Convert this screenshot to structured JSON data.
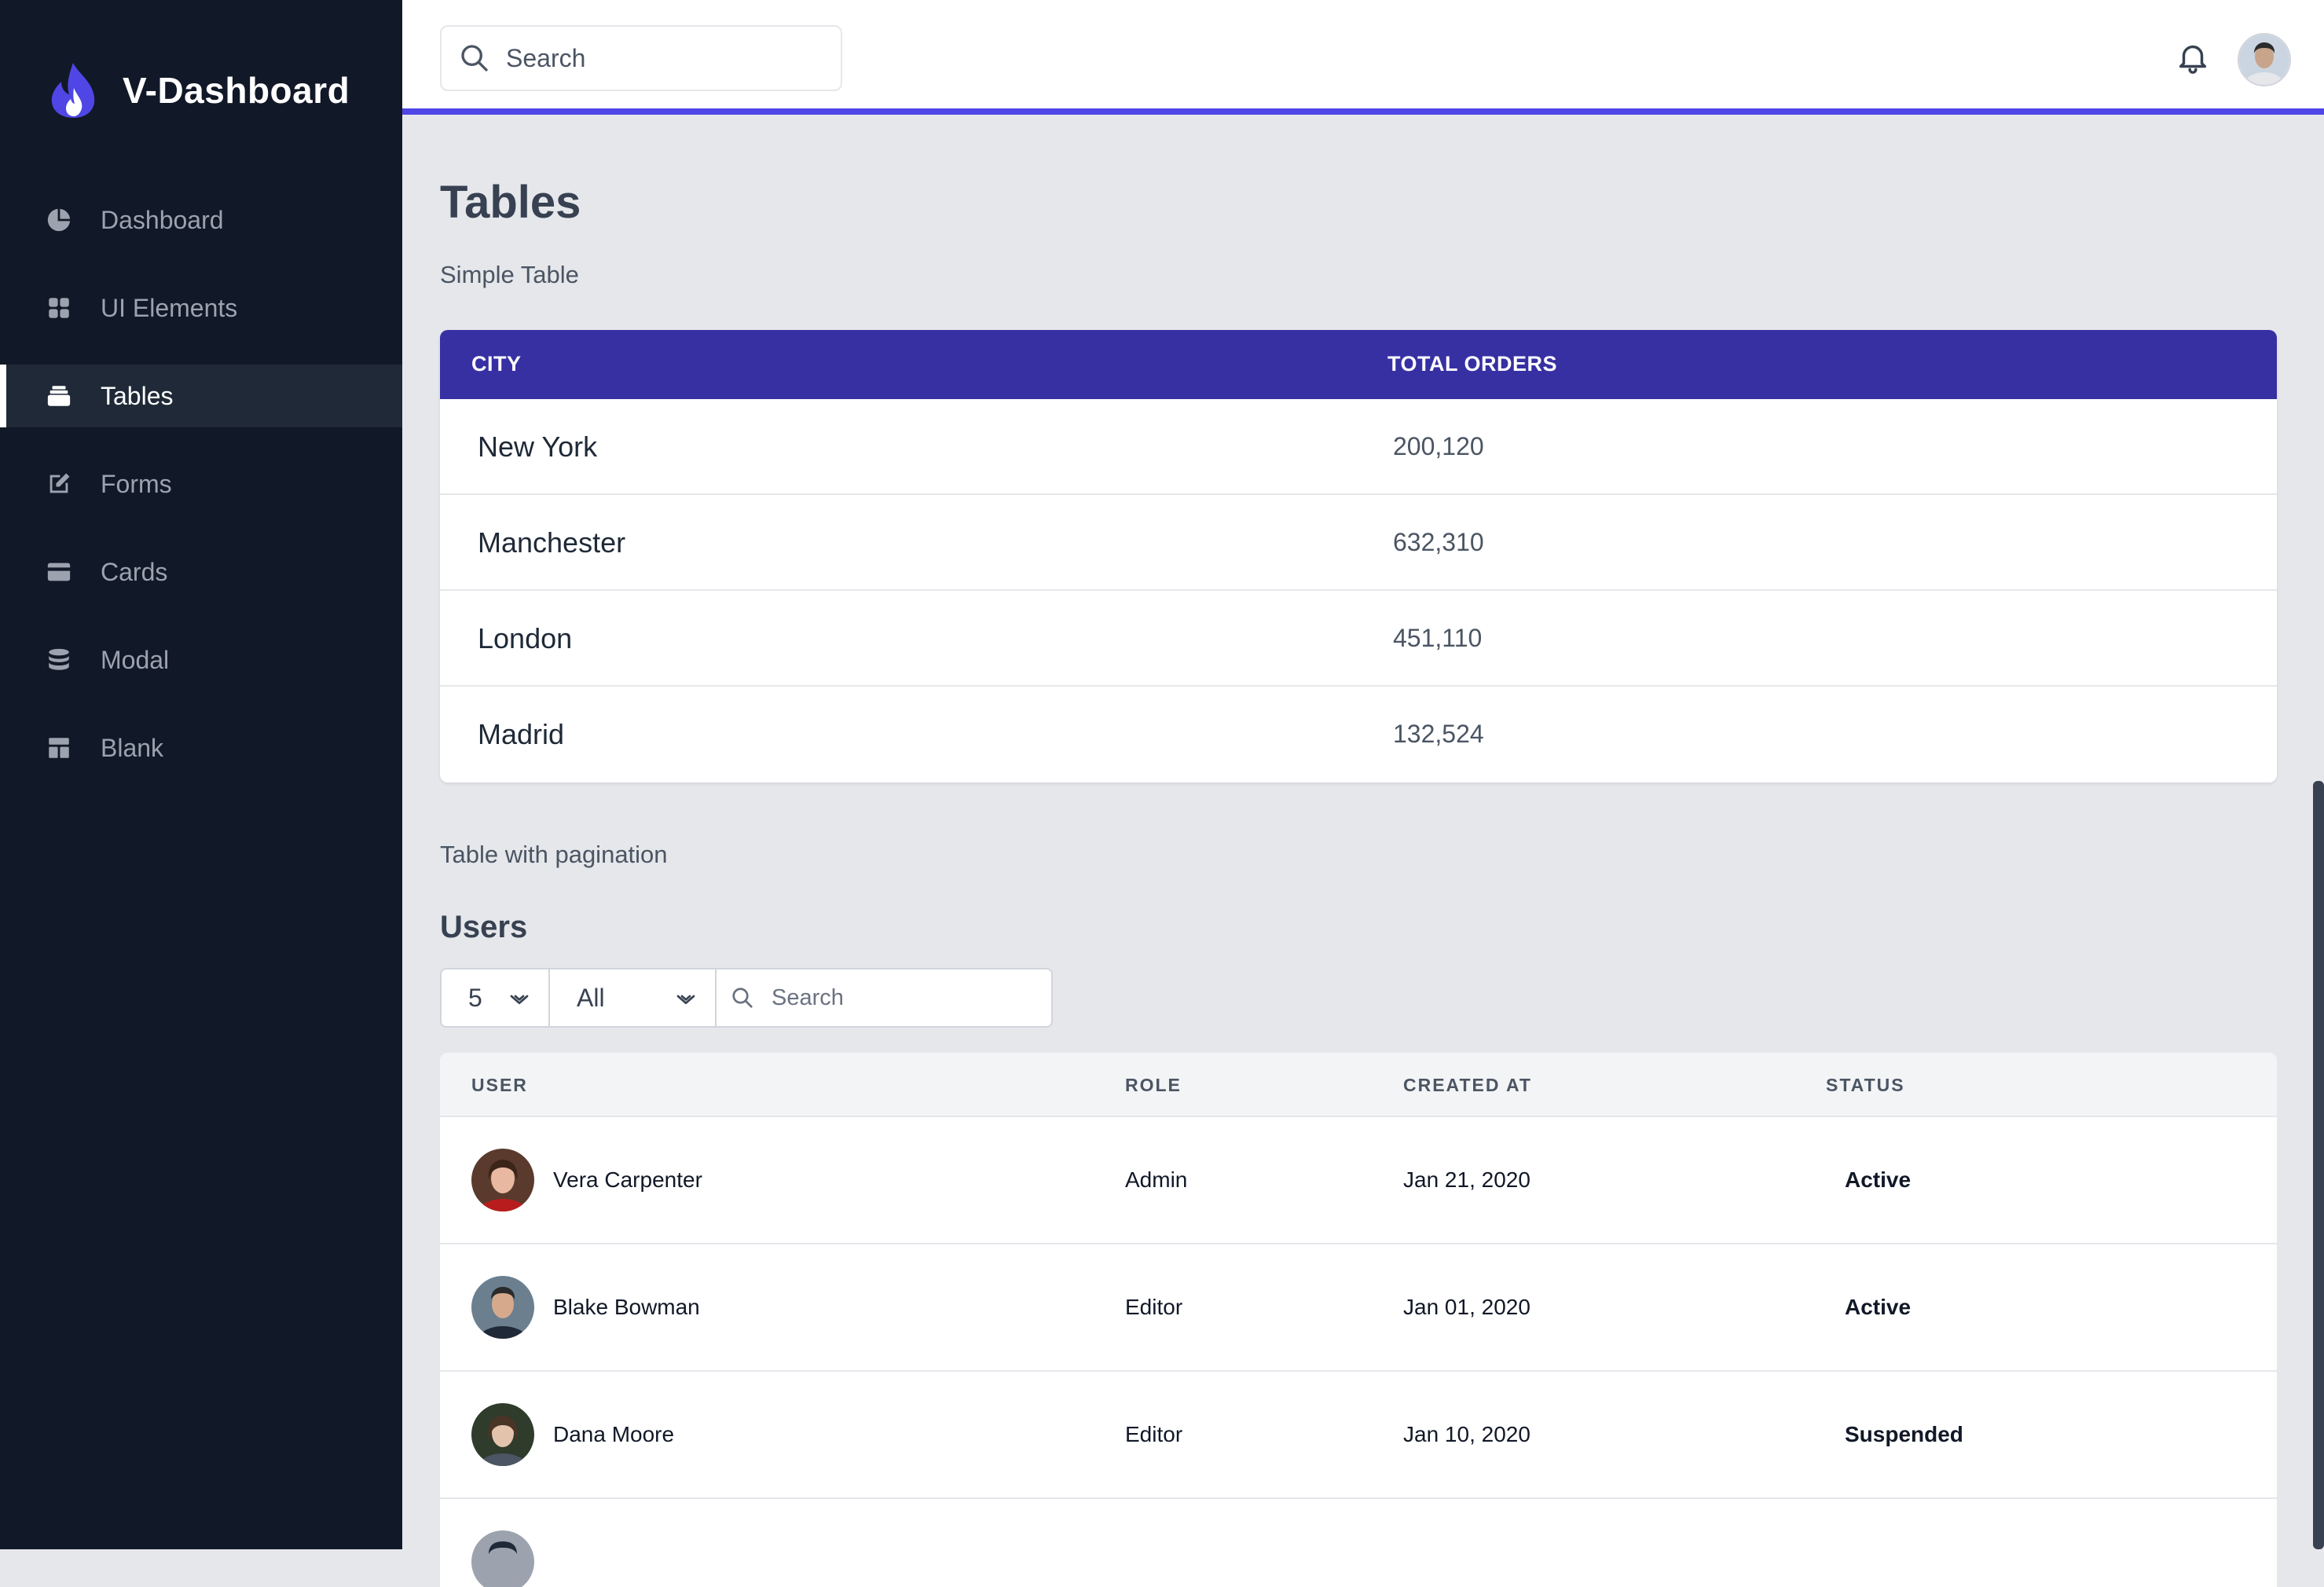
{
  "brand": {
    "name": "V-Dashboard",
    "accent": "#4f46e5"
  },
  "sidebar": {
    "items": [
      {
        "label": "Dashboard",
        "icon": "pie-chart-icon",
        "active": false
      },
      {
        "label": "UI Elements",
        "icon": "grid-icon",
        "active": false
      },
      {
        "label": "Tables",
        "icon": "layers-icon",
        "active": true
      },
      {
        "label": "Forms",
        "icon": "edit-icon",
        "active": false
      },
      {
        "label": "Cards",
        "icon": "credit-card-icon",
        "active": false
      },
      {
        "label": "Modal",
        "icon": "database-icon",
        "active": false
      },
      {
        "label": "Blank",
        "icon": "layout-icon",
        "active": false
      }
    ]
  },
  "header": {
    "search_placeholder": "Search",
    "icons": [
      "search-icon",
      "bell-icon",
      "user-avatar"
    ]
  },
  "page": {
    "title": "Tables",
    "simple_label": "Simple Table",
    "pagination_label": "Table with pagination"
  },
  "simple_table": {
    "header_color": "#3730a3",
    "columns": [
      "CITY",
      "TOTAL ORDERS"
    ],
    "rows": [
      {
        "city": "New York",
        "orders": "200,120"
      },
      {
        "city": "Manchester",
        "orders": "632,310"
      },
      {
        "city": "London",
        "orders": "451,110"
      },
      {
        "city": "Madrid",
        "orders": "132,524"
      }
    ]
  },
  "users": {
    "title": "Users",
    "page_size": "5",
    "filter": "All",
    "search_placeholder": "Search",
    "columns": [
      "USER",
      "ROLE",
      "CREATED AT",
      "STATUS"
    ],
    "rows": [
      {
        "name": "Vera Carpenter",
        "role": "Admin",
        "created": "Jan 21, 2020",
        "status": "Active"
      },
      {
        "name": "Blake Bowman",
        "role": "Editor",
        "created": "Jan 01, 2020",
        "status": "Active"
      },
      {
        "name": "Dana Moore",
        "role": "Editor",
        "created": "Jan 10, 2020",
        "status": "Suspended"
      }
    ]
  }
}
